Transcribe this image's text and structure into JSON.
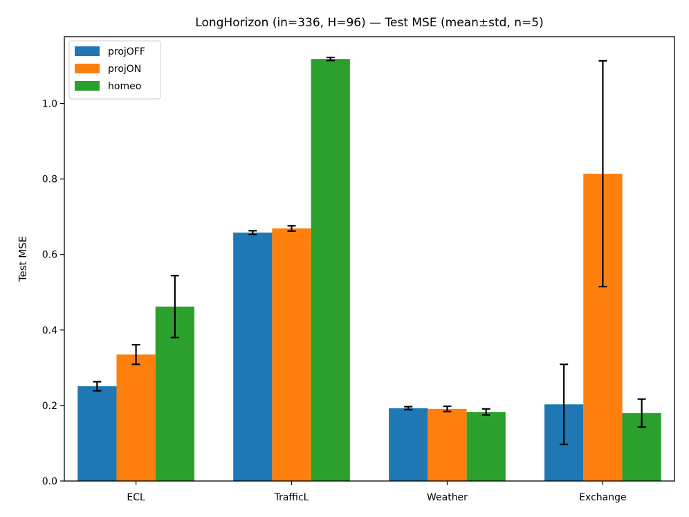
{
  "chart_data": {
    "type": "bar",
    "title": "LongHorizon (in=336, H=96) — Test MSE (mean±std, n=5)",
    "xlabel": "",
    "ylabel": "Test MSE",
    "categories": [
      "ECL",
      "TrafficL",
      "Weather",
      "Exchange"
    ],
    "series": [
      {
        "name": "projOFF",
        "color": "#1f77b4",
        "values": [
          0.251,
          0.658,
          0.193,
          0.203
        ],
        "errors": [
          0.012,
          0.005,
          0.004,
          0.106
        ]
      },
      {
        "name": "projON",
        "color": "#ff7f0e",
        "values": [
          0.335,
          0.669,
          0.191,
          0.814
        ],
        "errors": [
          0.026,
          0.007,
          0.007,
          0.299
        ]
      },
      {
        "name": "homeo",
        "color": "#2ca02c",
        "values": [
          0.462,
          1.118,
          0.183,
          0.18
        ],
        "errors": [
          0.082,
          0.004,
          0.008,
          0.037
        ]
      }
    ],
    "ylim": [
      0,
      1.177
    ],
    "yticks": [
      0.0,
      0.2,
      0.4,
      0.6,
      0.8,
      1.0
    ],
    "ytick_labels": [
      "0.0",
      "0.2",
      "0.4",
      "0.6",
      "0.8",
      "1.0"
    ],
    "legend_position": "top-left",
    "grid": false
  }
}
